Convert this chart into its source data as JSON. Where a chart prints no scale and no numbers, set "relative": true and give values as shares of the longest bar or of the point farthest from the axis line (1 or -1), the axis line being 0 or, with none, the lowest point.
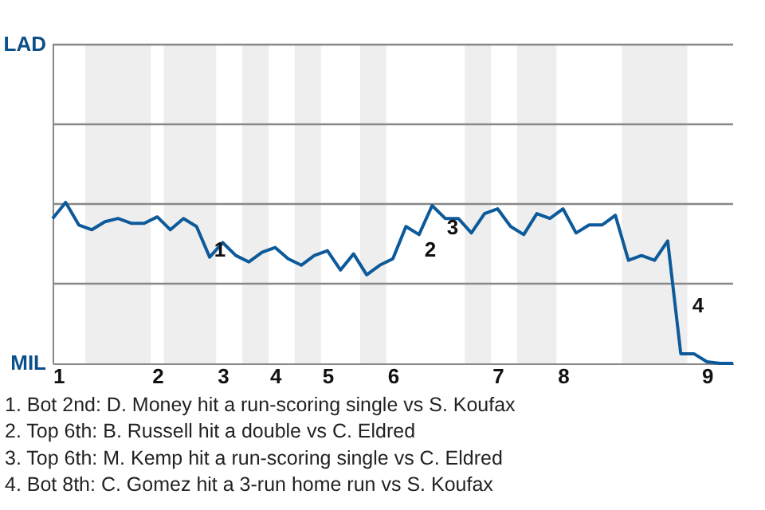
{
  "chart_data": {
    "type": "line",
    "relative": true,
    "categories": [
      "1",
      null,
      null,
      null,
      null,
      null,
      null,
      null,
      "2",
      null,
      null,
      null,
      null,
      "3",
      null,
      null,
      null,
      "4",
      null,
      null,
      null,
      "5",
      null,
      null,
      null,
      null,
      "6",
      null,
      null,
      null,
      null,
      null,
      null,
      null,
      "7",
      null,
      null,
      null,
      null,
      "8",
      null,
      null,
      null,
      null,
      null,
      null,
      null,
      null,
      null,
      null,
      "9",
      null,
      null
    ],
    "series": [
      {
        "color": "#0d5a9a",
        "values": [
          0.9,
          1,
          0.86,
          0.83,
          0.88,
          0.9,
          0.87,
          0.87,
          0.91,
          0.83,
          0.9,
          0.85,
          0.66,
          0.75,
          0.67,
          0.63,
          0.69,
          0.72,
          0.65,
          0.61,
          0.67,
          0.7,
          0.58,
          0.68,
          0.55,
          0.61,
          0.65,
          0.85,
          0.8,
          0.98,
          0.9,
          0.9,
          0.81,
          0.93,
          0.96,
          0.85,
          0.8,
          0.93,
          0.9,
          0.96,
          0.81,
          0.86,
          0.86,
          0.92,
          0.64,
          0.67,
          0.64,
          0.76,
          0.06,
          0.06,
          0.01,
          0,
          0
        ]
      }
    ],
    "ref_lines": [
      {
        "axis": "y",
        "value": 0.495,
        "color": "#888888"
      },
      {
        "axis": "y",
        "value": 0.99,
        "color": "#888888"
      },
      {
        "axis": "y",
        "value": 1.485,
        "color": "#888888"
      },
      {
        "axis": "y",
        "value": 1.98,
        "color": "#888888"
      }
    ],
    "annotations": [
      "LAD",
      "MIL",
      "1",
      "2",
      "3",
      "4",
      "1. Bot 2nd: D. Money hit a run-scoring single vs S. Koufax",
      "2. Top 6th: B. Russell hit a double vs C. Eldred",
      "3. Top 6th: M. Kemp hit a run-scoring single vs C. Eldred",
      "4. Bot 8th: C. Gomez hit a 3-run home run vs S. Koufax"
    ]
  }
}
